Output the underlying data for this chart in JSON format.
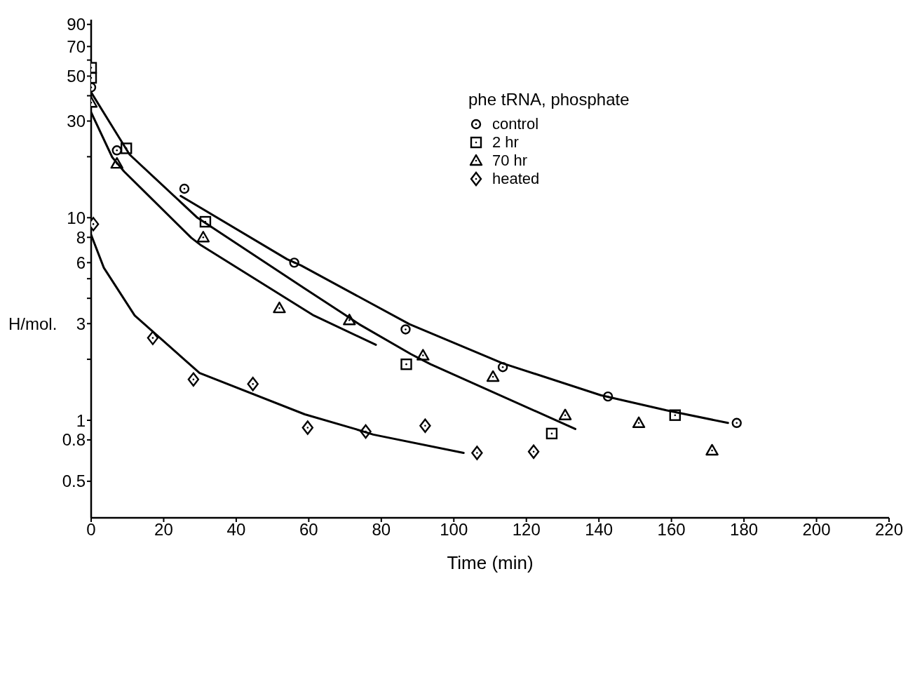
{
  "chart_data": {
    "type": "scatter",
    "xlabel": "Time (min)",
    "ylabel": "H/mol.",
    "legend_title": "phe tRNA, phosphate",
    "legend": "top right",
    "log": "y",
    "xlim": [
      0,
      220
    ],
    "xticks": [
      0,
      20,
      40,
      60,
      80,
      100,
      120,
      140,
      160,
      180,
      200,
      220
    ],
    "ylim": [
      0.33,
      95
    ],
    "yticks": [
      0.5,
      0.8,
      1,
      {
        "value": 2,
        "label": null
      },
      3,
      {
        "value": 4,
        "label": null
      },
      {
        "value": 5,
        "label": null
      },
      6,
      8,
      10,
      {
        "value": 20,
        "label": null
      },
      30,
      {
        "value": 40,
        "label": null
      },
      50,
      {
        "value": 60,
        "label": null
      },
      70,
      90
    ],
    "series": [
      {
        "name": "control",
        "marker": "circle",
        "color": "#000000",
        "x": [
          0,
          7.1,
          25.7,
          56,
          86.7,
          113.5,
          142.5,
          178
        ],
        "values": [
          44,
          21.5,
          13.9,
          6.0,
          2.81,
          1.83,
          1.31,
          0.97
        ]
      },
      {
        "name": "2 hr",
        "marker": "square",
        "color": "#000000",
        "x": [
          0,
          0,
          9.7,
          31.5,
          86.9,
          127,
          161
        ],
        "values": [
          55,
          49,
          22,
          9.55,
          1.89,
          0.86,
          1.06
        ]
      },
      {
        "name": "70 hr",
        "marker": "triangle",
        "color": "#000000",
        "x": [
          0,
          7.1,
          30.9,
          51.9,
          71.2,
          91.5,
          110.8,
          130.7,
          151,
          171.2
        ],
        "values": [
          37,
          18.5,
          8.0,
          3.58,
          3.12,
          2.09,
          1.64,
          1.06,
          0.97,
          0.71
        ]
      },
      {
        "name": "heated",
        "marker": "diamond",
        "color": "#000000",
        "x": [
          0.6,
          17,
          28.2,
          44.6,
          59.7,
          75.7,
          92.1,
          106.4,
          122
        ],
        "values": [
          9.3,
          2.55,
          1.59,
          1.51,
          0.92,
          0.88,
          0.94,
          0.69,
          0.7
        ]
      },
      {
        "type": "line",
        "marker": "none",
        "line_style": "solid",
        "color": "#000000",
        "x": [
          0,
          8.3,
          10.6,
          29.3,
          33.4,
          58.9,
          69.5,
          73.9,
          88.2,
          93.6,
          133.5
        ],
        "values": [
          41.6,
          23.9,
          20.5,
          10.0,
          8.95,
          4.47,
          3.36,
          2.98,
          2.12,
          1.89,
          0.906
        ]
      },
      {
        "type": "line",
        "marker": "none",
        "line_style": "solid",
        "color": "#000000",
        "x": [
          24.7,
          54.0,
          57.9,
          87.8,
          113.5,
          140.5,
          158.6,
          175.6
        ],
        "values": [
          12.8,
          6.24,
          5.81,
          2.98,
          1.91,
          1.33,
          1.12,
          0.97
        ]
      },
      {
        "type": "line",
        "marker": "none",
        "line_style": "solid",
        "color": "#000000",
        "x": [
          0,
          5.8,
          9.1,
          27.6,
          30.3,
          61.4,
          78.5
        ],
        "values": [
          33.1,
          19.9,
          16.9,
          7.96,
          7.31,
          3.29,
          2.36
        ]
      },
      {
        "type": "line",
        "marker": "none",
        "line_style": "solid",
        "color": "#000000",
        "x": [
          0,
          3.5,
          12.0,
          29.9,
          58.9,
          72.8,
          77.8,
          102.7
        ],
        "values": [
          8.22,
          5.66,
          3.29,
          1.71,
          1.07,
          0.906,
          0.85,
          0.69
        ]
      }
    ]
  }
}
